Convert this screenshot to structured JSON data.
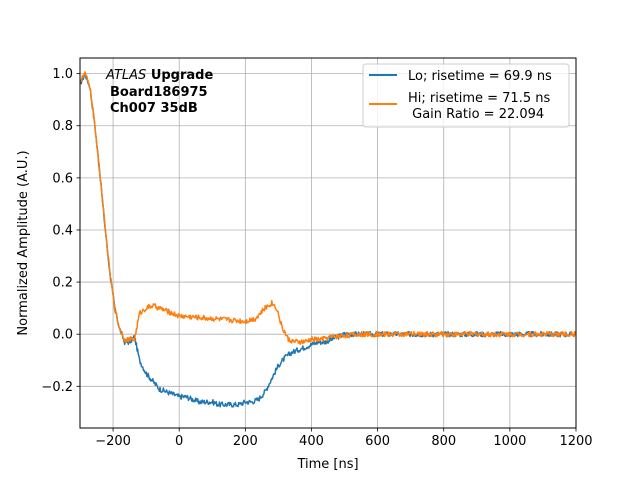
{
  "chart_data": {
    "type": "line",
    "xlabel": "Time [ns]",
    "ylabel": "Normalized Amplitude (A.U.)",
    "xlim": [
      -300,
      1200
    ],
    "ylim": [
      -0.36,
      1.06
    ],
    "xticks": [
      -200,
      0,
      200,
      400,
      600,
      800,
      1000,
      1200
    ],
    "xtick_labels": [
      "−200",
      "0",
      "200",
      "400",
      "600",
      "800",
      "1000",
      "1200"
    ],
    "yticks": [
      -0.2,
      0.0,
      0.2,
      0.4,
      0.6,
      0.8,
      1.0
    ],
    "ytick_labels": [
      "−0.2",
      "0.0",
      "0.2",
      "0.4",
      "0.6",
      "0.8",
      "1.0"
    ],
    "grid": true,
    "legend_position": "top-right",
    "annotation": {
      "italic": "ATLAS",
      "bold": "Upgrade",
      "line2": "Board186975",
      "line3": "Ch007 35dB"
    },
    "series": [
      {
        "name": "Lo; risetime = 69.9 ns",
        "color": "#1f77b4",
        "x": [
          -300,
          -285,
          -270,
          -255,
          -240,
          -225,
          -210,
          -195,
          -180,
          -165,
          -150,
          -135,
          -120,
          -100,
          -80,
          -60,
          -40,
          -20,
          0,
          20,
          40,
          60,
          80,
          100,
          120,
          140,
          160,
          180,
          200,
          220,
          240,
          260,
          280,
          300,
          320,
          340,
          360,
          380,
          400,
          420,
          440,
          460,
          480,
          500,
          550,
          600,
          650,
          700,
          750,
          800,
          850,
          900,
          950,
          1000,
          1050,
          1100,
          1150,
          1200
        ],
        "y": [
          0.96,
          1.0,
          0.95,
          0.8,
          0.62,
          0.42,
          0.24,
          0.1,
          0.02,
          -0.03,
          -0.03,
          -0.01,
          -0.1,
          -0.15,
          -0.18,
          -0.21,
          -0.22,
          -0.23,
          -0.24,
          -0.24,
          -0.25,
          -0.26,
          -0.26,
          -0.26,
          -0.27,
          -0.27,
          -0.27,
          -0.27,
          -0.26,
          -0.26,
          -0.25,
          -0.22,
          -0.17,
          -0.12,
          -0.09,
          -0.07,
          -0.06,
          -0.05,
          -0.04,
          -0.03,
          -0.03,
          -0.02,
          -0.01,
          0.0,
          0.0,
          0.0,
          0.0,
          0.0,
          0.0,
          0.0,
          0.0,
          0.0,
          0.0,
          0.0,
          0.0,
          0.0,
          0.0,
          0.0
        ]
      },
      {
        "name": "Hi; risetime = 71.5 ns\n Gain Ratio = 22.094",
        "color": "#ff7f0e",
        "x": [
          -300,
          -285,
          -270,
          -255,
          -240,
          -225,
          -210,
          -195,
          -180,
          -165,
          -150,
          -135,
          -120,
          -100,
          -80,
          -60,
          -40,
          -20,
          0,
          50,
          100,
          150,
          200,
          230,
          260,
          280,
          295,
          310,
          330,
          350,
          380,
          400,
          430,
          460,
          500,
          550,
          600,
          650,
          700,
          750,
          800,
          850,
          900,
          950,
          1000,
          1050,
          1100,
          1150,
          1200
        ],
        "y": [
          0.97,
          1.0,
          0.95,
          0.8,
          0.62,
          0.42,
          0.24,
          0.1,
          0.02,
          -0.02,
          -0.02,
          -0.02,
          0.08,
          0.1,
          0.11,
          0.1,
          0.09,
          0.08,
          0.07,
          0.065,
          0.06,
          0.055,
          0.05,
          0.06,
          0.1,
          0.12,
          0.1,
          0.03,
          -0.02,
          -0.03,
          -0.03,
          -0.02,
          -0.02,
          -0.01,
          -0.005,
          0.0,
          0.0,
          0.0,
          0.0,
          0.0,
          0.0,
          0.0,
          0.0,
          0.0,
          0.0,
          0.0,
          0.0,
          0.0,
          0.0
        ]
      }
    ]
  }
}
